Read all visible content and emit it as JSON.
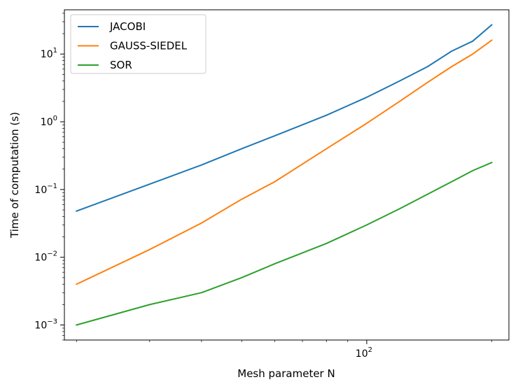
{
  "chart_data": {
    "type": "line",
    "xscale": "log",
    "yscale": "log",
    "xlabel": "Mesh parameter N",
    "ylabel": "Time of computation (s)",
    "xlim": [
      18.7,
      220
    ],
    "ylim": [
      0.0006,
      45
    ],
    "xticks": [
      {
        "value": 100,
        "base": "10",
        "exp": "2"
      }
    ],
    "yticks": [
      {
        "value": 0.001,
        "base": "10",
        "exp": "−3"
      },
      {
        "value": 0.01,
        "base": "10",
        "exp": "−2"
      },
      {
        "value": 0.1,
        "base": "10",
        "exp": "−1"
      },
      {
        "value": 1,
        "base": "10",
        "exp": "0"
      },
      {
        "value": 10,
        "base": "10",
        "exp": "1"
      }
    ],
    "legend_position": "top-left",
    "grid": false,
    "series": [
      {
        "name": "JACOBI",
        "color": "#1f77b4",
        "x": [
          20,
          30,
          40,
          50,
          60,
          80,
          100,
          120,
          140,
          160,
          180,
          200
        ],
        "y": [
          0.048,
          0.12,
          0.23,
          0.4,
          0.62,
          1.25,
          2.3,
          4.0,
          6.5,
          11.0,
          15.5,
          27.0
        ]
      },
      {
        "name": "GAUSS-SIEDEL",
        "color": "#ff7f0e",
        "x": [
          20,
          30,
          40,
          50,
          60,
          80,
          100,
          120,
          140,
          160,
          180,
          200
        ],
        "y": [
          0.004,
          0.013,
          0.032,
          0.072,
          0.13,
          0.4,
          0.95,
          2.0,
          3.8,
          6.5,
          10.0,
          16.0
        ]
      },
      {
        "name": "SOR",
        "color": "#2ca02c",
        "x": [
          20,
          30,
          40,
          50,
          60,
          80,
          100,
          120,
          140,
          160,
          180,
          200
        ],
        "y": [
          0.001,
          0.002,
          0.003,
          0.005,
          0.008,
          0.016,
          0.03,
          0.052,
          0.085,
          0.13,
          0.19,
          0.25
        ]
      }
    ]
  }
}
